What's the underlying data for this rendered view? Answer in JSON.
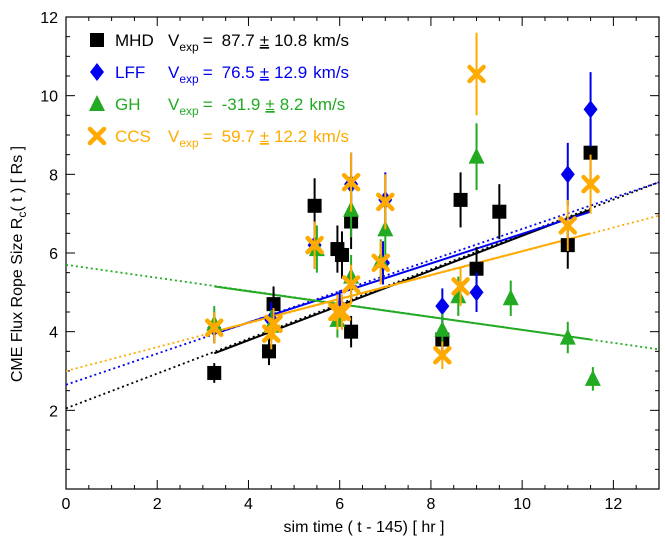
{
  "chart_data": {
    "type": "scatter",
    "title": "",
    "xlabel": "sim time ( t - 145)   [ hr ]",
    "ylabel": {
      "prefix": "CME Flux Rope Size  R",
      "sub": "c",
      "suffix": "( t )   [ Rs ]"
    },
    "xlim": [
      0,
      13
    ],
    "ylim": [
      0,
      12
    ],
    "xticks": [
      0,
      2,
      4,
      6,
      8,
      10,
      12
    ],
    "yticks": [
      2,
      4,
      6,
      8,
      10,
      12
    ],
    "legend_position": "top-left",
    "series": [
      {
        "name": "MHD",
        "color": "#000000",
        "marker": "square",
        "legend": {
          "v_label": "V",
          "v_sub": "exp",
          "eq": "=",
          "value": "87.7",
          "pm": "±",
          "err": "10.8",
          "unit": "km/s"
        },
        "points": [
          {
            "x": 3.25,
            "y": 2.95,
            "err": 0.25
          },
          {
            "x": 4.45,
            "y": 3.5,
            "err": 0.35
          },
          {
            "x": 4.55,
            "y": 4.7,
            "err": 0.45
          },
          {
            "x": 5.45,
            "y": 7.2,
            "err": 0.7
          },
          {
            "x": 5.95,
            "y": 6.1,
            "err": 0.6
          },
          {
            "x": 6.05,
            "y": 5.95,
            "err": 0.6
          },
          {
            "x": 6.25,
            "y": 6.8,
            "err": 0.7
          },
          {
            "x": 6.25,
            "y": 4.0,
            "err": 0.4
          },
          {
            "x": 8.25,
            "y": 3.8,
            "err": 0.4
          },
          {
            "x": 8.65,
            "y": 7.35,
            "err": 0.7
          },
          {
            "x": 9.0,
            "y": 5.6,
            "err": 0.55
          },
          {
            "x": 9.5,
            "y": 7.05,
            "err": 0.7
          },
          {
            "x": 11.0,
            "y": 6.2,
            "err": 0.6
          },
          {
            "x": 11.5,
            "y": 8.55,
            "err": 0.85
          }
        ],
        "fit": {
          "x": [
            3.25,
            11.5
          ],
          "y": [
            3.45,
            7.1
          ]
        },
        "fit_ext": {
          "x": [
            0,
            13
          ],
          "y": [
            2.05,
            7.8
          ]
        }
      },
      {
        "name": "LFF",
        "color": "#0000ee",
        "marker": "diamond",
        "legend": {
          "v_label": "V",
          "v_sub": "exp",
          "eq": "=",
          "value": "76.5",
          "pm": "±",
          "err": "12.9",
          "unit": "km/s"
        },
        "points": [
          {
            "x": 3.25,
            "y": 4.1,
            "err": 0.4
          },
          {
            "x": 4.5,
            "y": 4.3,
            "err": 0.45
          },
          {
            "x": 5.45,
            "y": 6.2,
            "err": 0.6
          },
          {
            "x": 6.0,
            "y": 4.6,
            "err": 0.45
          },
          {
            "x": 6.25,
            "y": 7.75,
            "err": 0.8
          },
          {
            "x": 6.95,
            "y": 5.75,
            "err": 0.55
          },
          {
            "x": 7.0,
            "y": 7.35,
            "err": 0.7
          },
          {
            "x": 8.25,
            "y": 4.65,
            "err": 0.45
          },
          {
            "x": 9.0,
            "y": 5.0,
            "err": 0.5
          },
          {
            "x": 11.0,
            "y": 8.0,
            "err": 0.8
          },
          {
            "x": 11.5,
            "y": 9.65,
            "err": 0.95
          }
        ],
        "fit": {
          "x": [
            3.25,
            11.5
          ],
          "y": [
            3.95,
            7.05
          ]
        },
        "fit_ext": {
          "x": [
            0,
            13
          ],
          "y": [
            2.65,
            7.8
          ]
        }
      },
      {
        "name": "GH",
        "color": "#22aa22",
        "marker": "triangle",
        "legend": {
          "v_label": "V",
          "v_sub": "exp",
          "eq": "=",
          "value": "-31.9",
          "pm": "±",
          "err": "8.2",
          "unit": "km/s"
        },
        "points": [
          {
            "x": 3.25,
            "y": 4.2,
            "err": 0.45
          },
          {
            "x": 4.5,
            "y": 4.15,
            "err": 0.4
          },
          {
            "x": 5.5,
            "y": 6.1,
            "err": 0.6
          },
          {
            "x": 5.95,
            "y": 4.3,
            "err": 0.45
          },
          {
            "x": 6.25,
            "y": 7.1,
            "err": 0.7
          },
          {
            "x": 6.25,
            "y": 5.4,
            "err": 0.55
          },
          {
            "x": 6.9,
            "y": 5.8,
            "err": 0.55
          },
          {
            "x": 7.0,
            "y": 6.6,
            "err": 0.65
          },
          {
            "x": 8.25,
            "y": 4.05,
            "err": 0.4
          },
          {
            "x": 8.6,
            "y": 4.9,
            "err": 0.5
          },
          {
            "x": 9.0,
            "y": 8.45,
            "err": 0.85
          },
          {
            "x": 9.75,
            "y": 4.85,
            "err": 0.45
          },
          {
            "x": 11.0,
            "y": 3.85,
            "err": 0.4
          },
          {
            "x": 11.55,
            "y": 2.8,
            "err": 0.3
          }
        ],
        "fit": {
          "x": [
            3.25,
            11.5
          ],
          "y": [
            5.15,
            3.8
          ]
        },
        "fit_ext": {
          "x": [
            0,
            13
          ],
          "y": [
            5.7,
            3.55
          ]
        }
      },
      {
        "name": "CCS",
        "color": "#ffaa00",
        "marker": "cross",
        "legend": {
          "v_label": "V",
          "v_sub": "exp",
          "eq": "=",
          "value": "59.7",
          "pm": "±",
          "err": "12.2",
          "unit": "km/s"
        },
        "points": [
          {
            "x": 3.25,
            "y": 4.1,
            "err": 0.4
          },
          {
            "x": 4.5,
            "y": 3.95,
            "err": 0.4
          },
          {
            "x": 4.55,
            "y": 4.2,
            "err": 0.4
          },
          {
            "x": 5.45,
            "y": 6.2,
            "err": 0.6
          },
          {
            "x": 5.95,
            "y": 4.5,
            "err": 0.45
          },
          {
            "x": 6.05,
            "y": 4.5,
            "err": 0.45
          },
          {
            "x": 6.25,
            "y": 7.8,
            "err": 0.75
          },
          {
            "x": 6.25,
            "y": 5.2,
            "err": 0.5
          },
          {
            "x": 6.9,
            "y": 5.75,
            "err": 0.55
          },
          {
            "x": 7.0,
            "y": 7.3,
            "err": 0.7
          },
          {
            "x": 8.25,
            "y": 3.4,
            "err": 0.35
          },
          {
            "x": 8.65,
            "y": 5.15,
            "err": 0.5
          },
          {
            "x": 9.0,
            "y": 10.55,
            "err": 1.05
          },
          {
            "x": 11.0,
            "y": 6.7,
            "err": 0.65
          },
          {
            "x": 11.5,
            "y": 7.75,
            "err": 0.75
          }
        ],
        "fit": {
          "x": [
            3.25,
            11.5
          ],
          "y": [
            4.0,
            6.5
          ]
        },
        "fit_ext": {
          "x": [
            0,
            13
          ],
          "y": [
            3.0,
            6.95
          ]
        }
      }
    ]
  }
}
